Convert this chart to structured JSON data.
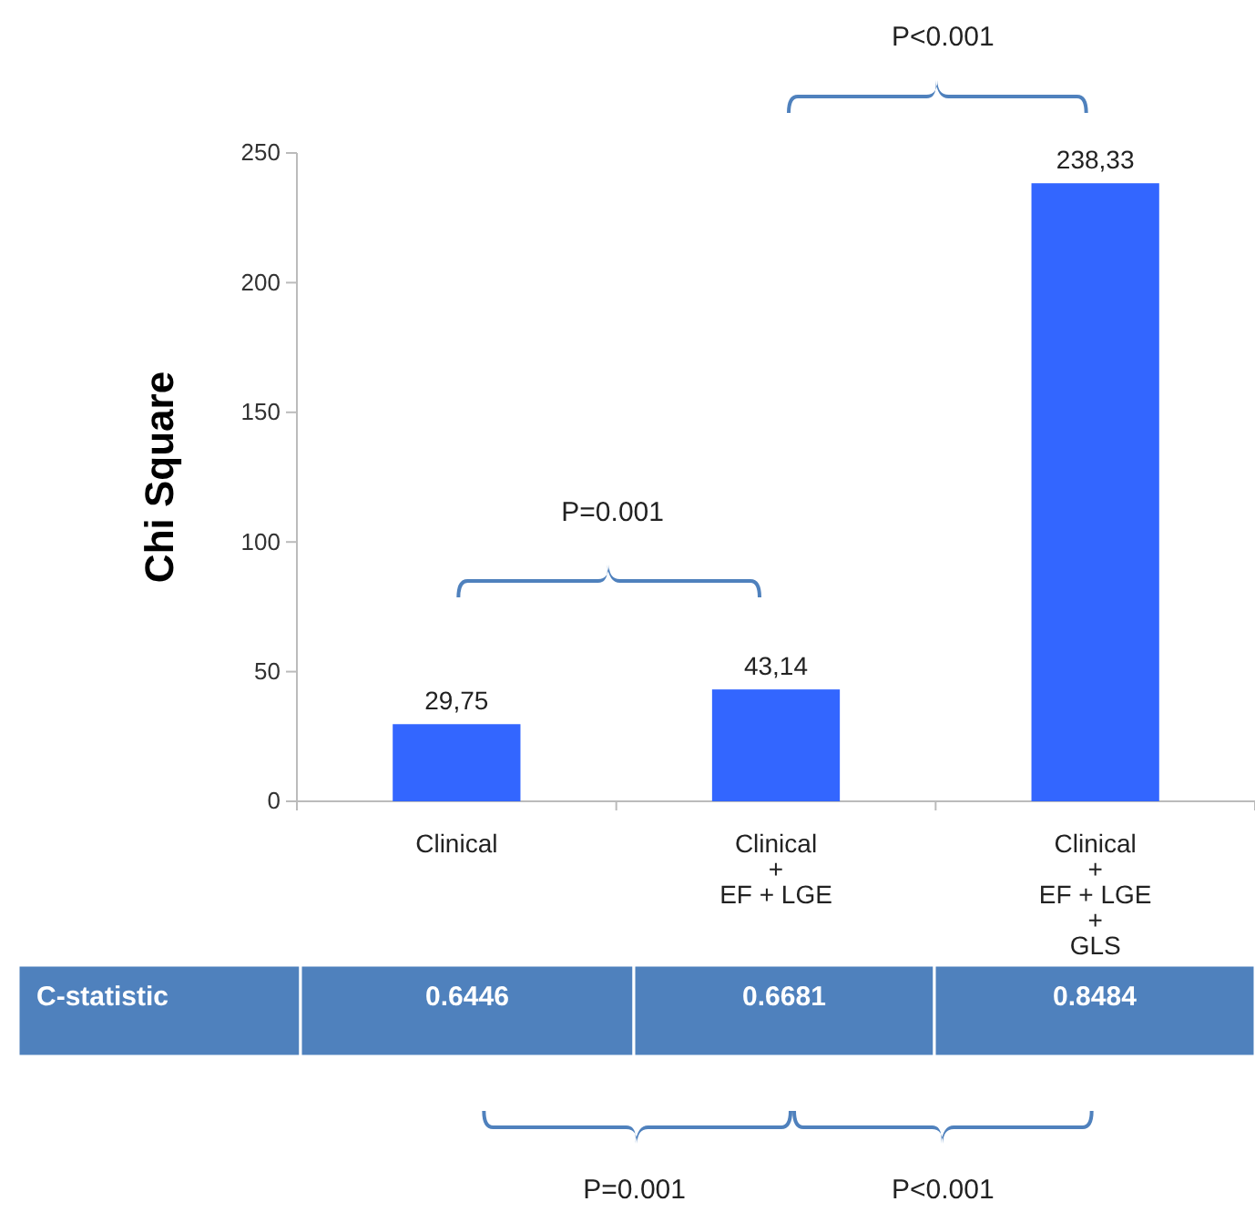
{
  "chart_data": {
    "type": "bar",
    "ylabel": "Chi Square",
    "categories": [
      "Clinical",
      "Clinical\n+\nEF + LGE",
      "Clinical\n+\nEF + LGE\n+\nGLS"
    ],
    "values": [
      29.75,
      43.14,
      238.33
    ],
    "color": "#3366ff",
    "value_labels": [
      "29,75",
      "43,14",
      "238,33"
    ],
    "ylim": [
      0,
      250
    ],
    "yticks": [
      0,
      50,
      100,
      150,
      200,
      250
    ],
    "grid": false,
    "annotations": [
      "P<0.001",
      "P=0.001",
      "C-statistic",
      "0.6446",
      "0.6681",
      "0.8484",
      "P=0.001",
      "P<0.001"
    ]
  }
}
